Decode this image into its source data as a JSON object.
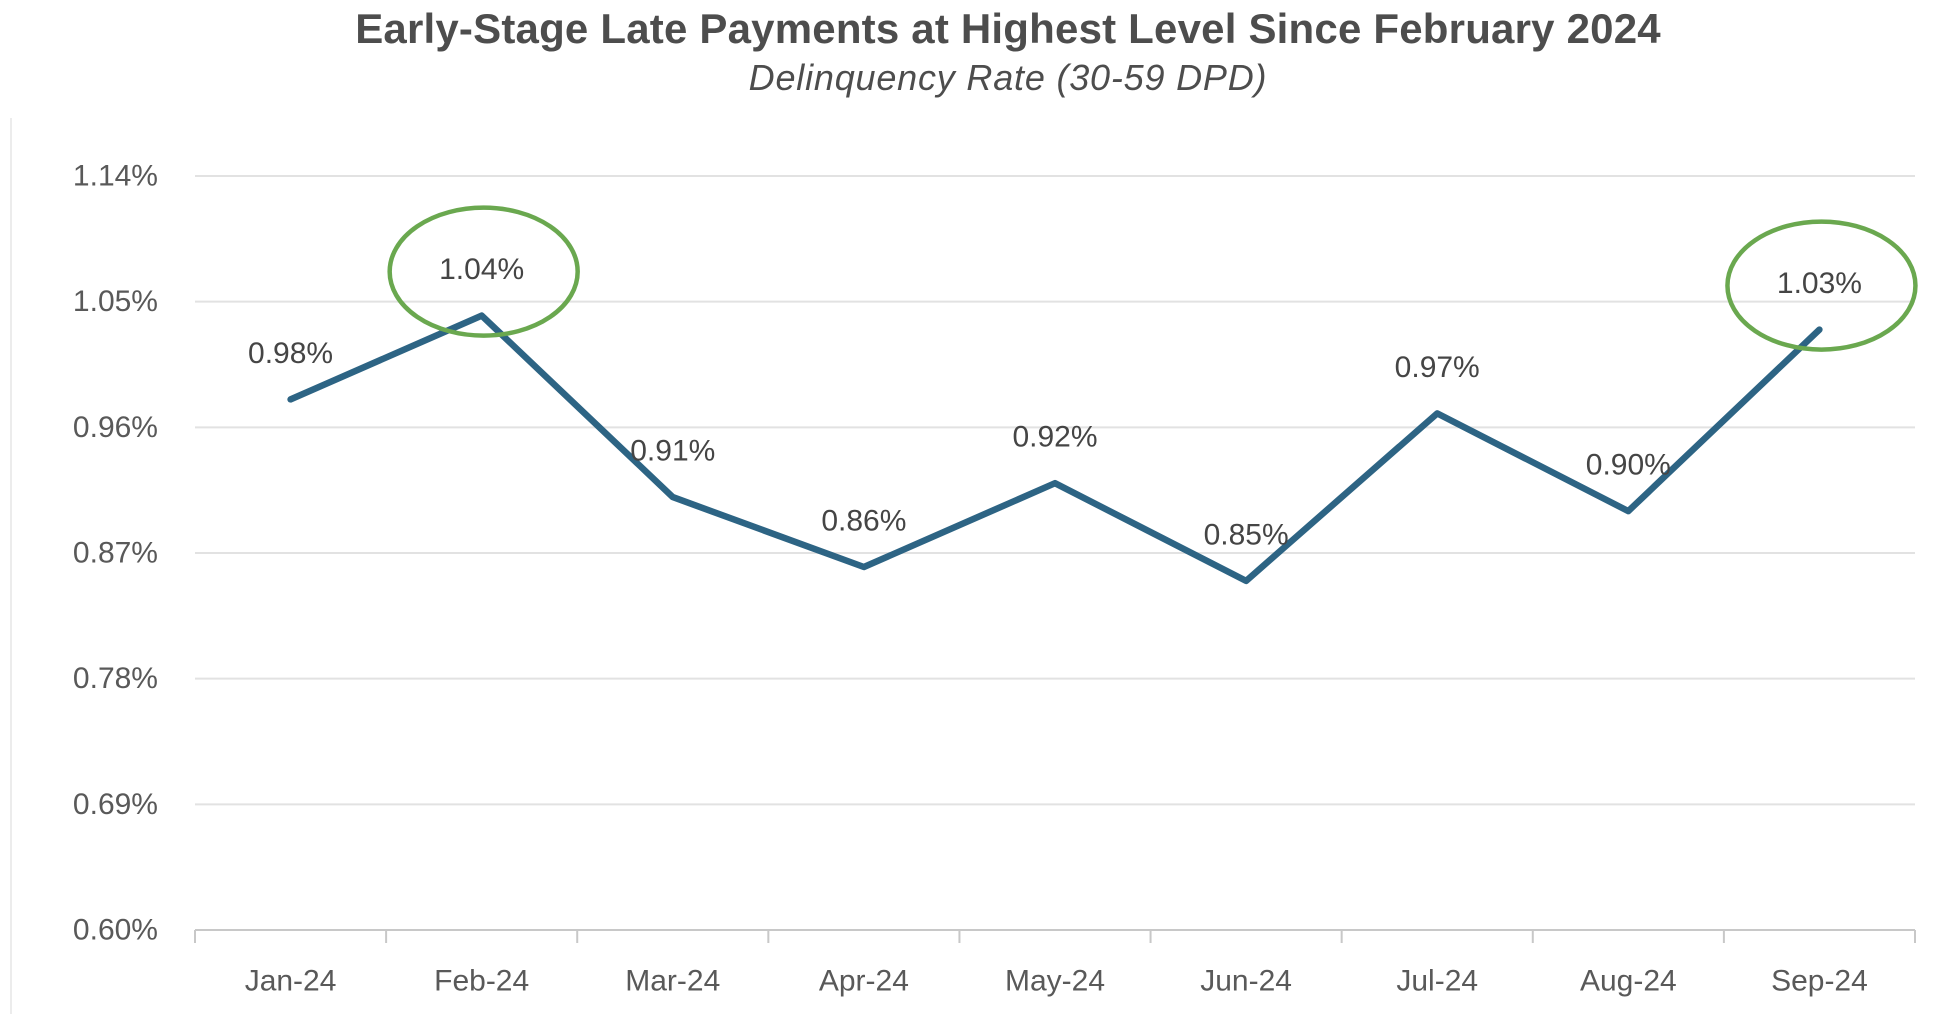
{
  "chart_data": {
    "type": "line",
    "title": "Early-Stage Late Payments at Highest Level Since February 2024",
    "subtitle": "Delinquency Rate (30-59 DPD)",
    "categories": [
      "Jan-24",
      "Feb-24",
      "Mar-24",
      "Apr-24",
      "May-24",
      "Jun-24",
      "Jul-24",
      "Aug-24",
      "Sep-24"
    ],
    "series": [
      {
        "name": "Delinquency Rate (30-59 DPD)",
        "values": [
          0.98,
          1.04,
          0.91,
          0.86,
          0.92,
          0.85,
          0.97,
          0.9,
          1.03
        ],
        "point_labels": [
          "0.98%",
          "1.04%",
          "0.91%",
          "0.86%",
          "0.92%",
          "0.85%",
          "0.97%",
          "0.90%",
          "1.03%"
        ],
        "color": "#2d6484"
      }
    ],
    "y_axis": {
      "min": 0.6,
      "max": 1.14,
      "tick_labels": [
        "1.14%",
        "1.05%",
        "0.96%",
        "0.87%",
        "0.78%",
        "0.69%",
        "0.60%"
      ],
      "tick_values": [
        1.14,
        1.05,
        0.96,
        0.87,
        0.78,
        0.69,
        0.6
      ]
    },
    "x_axis": {
      "tick_labels": [
        "Jan-24",
        "Feb-24",
        "Mar-24",
        "Apr-24",
        "May-24",
        "Jun-24",
        "Jul-24",
        "Aug-24",
        "Sep-24"
      ]
    },
    "annotations": [
      {
        "type": "ellipse",
        "target_index": 1,
        "label": "1.04%",
        "color": "#6aa84f"
      },
      {
        "type": "ellipse",
        "target_index": 8,
        "label": "1.03%",
        "color": "#6aa84f"
      }
    ],
    "grid": true,
    "legend_position": "none"
  },
  "colors": {
    "line": "#2d6484",
    "annotation_green": "#6aa84f",
    "gridline": "#e2e2e2",
    "axis_line": "#c8c8c8",
    "axis_label": "#595959",
    "data_label": "#454545",
    "title_text": "#4d4d4d",
    "left_edge": "#ececec"
  }
}
